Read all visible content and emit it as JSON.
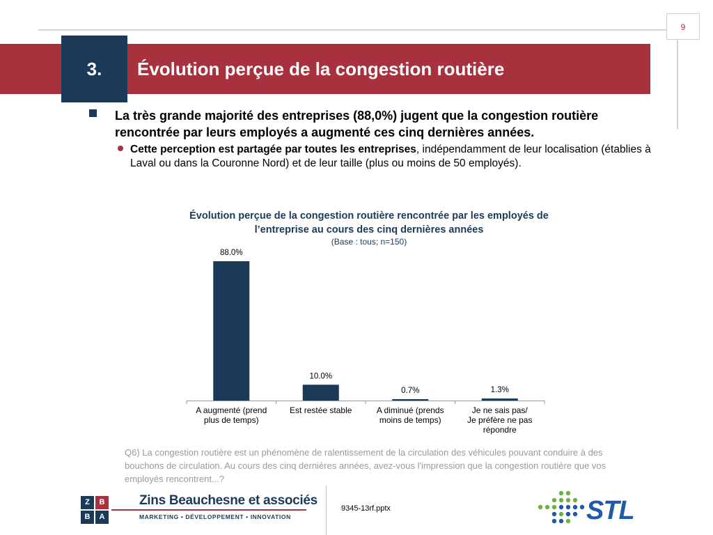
{
  "page": {
    "number": "9"
  },
  "section": {
    "number": "3.",
    "title": "Évolution perçue de la congestion routière"
  },
  "bullets": {
    "main": "La très grande majorité des entreprises (88,0%) jugent que la congestion routière rencontrée par leurs employés a augmenté ces cinq dernières années.",
    "sub_bold": "Cette perception est partagée par toutes les entreprises",
    "sub_rest": ", indépendamment de leur localisation (établies à Laval ou dans la Couronne Nord) et de leur taille (plus ou moins de 50 employés)."
  },
  "chart_data": {
    "type": "bar",
    "title": "Évolution perçue de la congestion routière rencontrée par les employés de l’entreprise au cours des cinq dernières années",
    "subtitle": "(Base : tous; n=150)",
    "categories": [
      [
        "A augmenté (prend",
        "plus de temps)"
      ],
      [
        "Est restée stable"
      ],
      [
        "A diminué (prends",
        "moins de temps)"
      ],
      [
        "Je ne sais pas/",
        "Je préfère ne pas",
        "répondre"
      ]
    ],
    "values": [
      88.0,
      10.0,
      0.7,
      1.3
    ],
    "labels": [
      "88.0%",
      "10.0%",
      "0.7%",
      "1.3%"
    ],
    "ylim": [
      0,
      100
    ],
    "grid": false,
    "bar_color": "#1b3a57"
  },
  "question": "Q6) La congestion routière est un phénomène de ralentissement de la circulation des véhicules pouvant conduire à des bouchons de circulation. Au cours des cinq dernières années, avez-vous l'impression que la congestion routière que vos employés rencontrent...?",
  "footer": {
    "file": "9345-13rf.pptx",
    "zba_letters": [
      "Z",
      "B",
      "B",
      "A"
    ],
    "zba_name": "Zins Beauchesne et associés",
    "zba_tagline": "MARKETING  •  DÉVELOPPEMENT  •  INNOVATION",
    "stl_name": "STL"
  },
  "colors": {
    "brand_red": "#a7323d",
    "brand_navy": "#1b3a57",
    "stl_blue": "#1e5aa8",
    "stl_green": "#6cb33f"
  }
}
